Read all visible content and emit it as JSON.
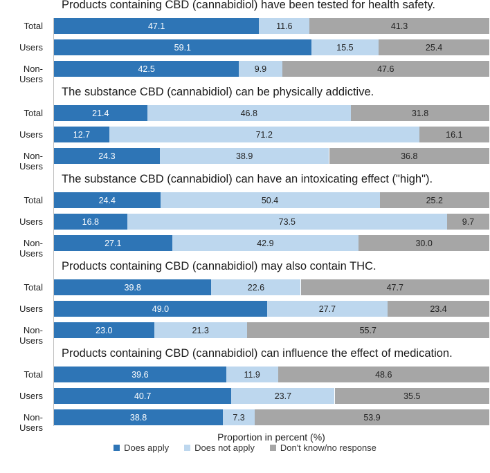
{
  "colors": {
    "does_apply": "#2e75b6",
    "does_not_apply": "#bdd7ee",
    "dont_know": "#a6a6a6"
  },
  "chart_data": {
    "type": "bar",
    "orientation": "horizontal",
    "stacked": true,
    "xlabel": "Proportion in percent (%)",
    "xlim": [
      0,
      100
    ],
    "legend": {
      "position": "bottom",
      "entries": [
        "Does apply",
        "Does not apply",
        "Don't know/no response"
      ]
    },
    "panels": [
      {
        "title": "Products containing CBD (cannabidiol) have been tested for health safety.",
        "rows": [
          {
            "label": "Total",
            "values": [
              47.1,
              11.6,
              41.3
            ],
            "texts": [
              "47.1",
              "11.6",
              "41.3"
            ]
          },
          {
            "label": "Users",
            "values": [
              59.1,
              15.5,
              25.4
            ],
            "texts": [
              "59.1",
              "15.5",
              "25.4"
            ]
          },
          {
            "label": "Non-Users",
            "values": [
              42.5,
              9.9,
              47.6
            ],
            "texts": [
              "42.5",
              "9.9",
              "47.6"
            ]
          }
        ]
      },
      {
        "title": "The substance CBD (cannabidiol) can be physically addictive.",
        "rows": [
          {
            "label": "Total",
            "values": [
              21.4,
              46.8,
              31.8
            ],
            "texts": [
              "21.4",
              "46.8",
              "31.8"
            ]
          },
          {
            "label": "Users",
            "values": [
              12.7,
              71.2,
              16.1
            ],
            "texts": [
              "12.7",
              "71.2",
              "16.1"
            ]
          },
          {
            "label": "Non-Users",
            "values": [
              24.3,
              38.9,
              36.8
            ],
            "texts": [
              "24.3",
              "38.9",
              "36.8"
            ]
          }
        ]
      },
      {
        "title": "The substance CBD (cannabidiol) can have an intoxicating effect (\"high\").",
        "rows": [
          {
            "label": "Total",
            "values": [
              24.4,
              50.4,
              25.2
            ],
            "texts": [
              "24.4",
              "50.4",
              "25.2"
            ]
          },
          {
            "label": "Users",
            "values": [
              16.8,
              73.5,
              9.7
            ],
            "texts": [
              "16.8",
              "73.5",
              "9.7"
            ]
          },
          {
            "label": "Non-Users",
            "values": [
              27.1,
              42.9,
              30.0
            ],
            "texts": [
              "27.1",
              "42.9",
              "30.0"
            ]
          }
        ]
      },
      {
        "title": "Products containing CBD (cannabidiol) may also contain THC.",
        "rows": [
          {
            "label": "Total",
            "values": [
              39.8,
              22.6,
              47.7
            ],
            "texts": [
              "39.8",
              "22.6",
              "47.7"
            ]
          },
          {
            "label": "Users",
            "values": [
              49.0,
              27.7,
              23.4
            ],
            "texts": [
              "49.0",
              "27.7",
              "23.4"
            ]
          },
          {
            "label": "Non-Users",
            "values": [
              23.0,
              21.3,
              55.7
            ],
            "texts": [
              "23.0",
              "21.3",
              "55.7"
            ]
          }
        ]
      },
      {
        "title": "Products containing CBD (cannabidiol) can influence the effect of medication.",
        "rows": [
          {
            "label": "Total",
            "values": [
              39.6,
              11.9,
              48.6
            ],
            "texts": [
              "39.6",
              "11.9",
              "48.6"
            ]
          },
          {
            "label": "Users",
            "values": [
              40.7,
              23.7,
              35.5
            ],
            "texts": [
              "40.7",
              "23.7",
              "35.5"
            ]
          },
          {
            "label": "Non-Users",
            "values": [
              38.8,
              7.3,
              53.9
            ],
            "texts": [
              "38.8",
              "7.3",
              "53.9"
            ]
          }
        ]
      }
    ]
  }
}
